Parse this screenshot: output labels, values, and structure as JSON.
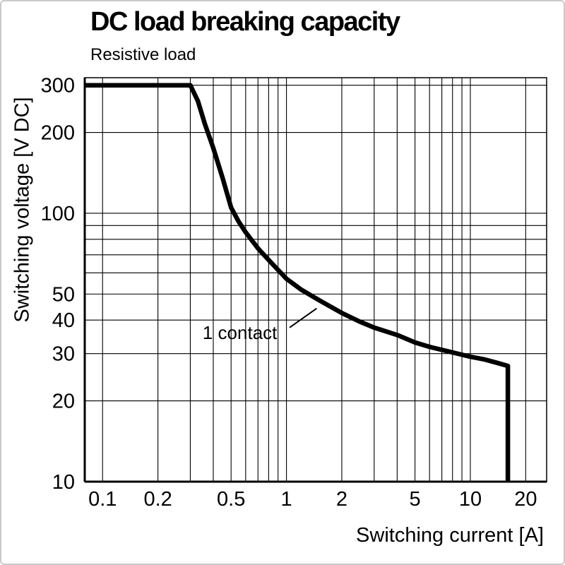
{
  "chart_data": {
    "type": "line",
    "title": "DC load breaking capacity",
    "subtitle": "Resistive load",
    "xlabel": "Switching current [A]",
    "ylabel": "Switching voltage [V DC]",
    "x_scale": "log",
    "y_scale": "log",
    "xlim": [
      0.08,
      26
    ],
    "ylim": [
      10,
      320
    ],
    "grid": true,
    "x_ticks": [
      {
        "value": 0.1,
        "label": "0.1"
      },
      {
        "value": 0.2,
        "label": "0.2"
      },
      {
        "value": 0.5,
        "label": "0.5"
      },
      {
        "value": 1,
        "label": "1"
      },
      {
        "value": 2,
        "label": "2"
      },
      {
        "value": 5,
        "label": "5"
      },
      {
        "value": 10,
        "label": "10"
      },
      {
        "value": 20,
        "label": "20"
      }
    ],
    "y_ticks": [
      {
        "value": 10,
        "label": "10"
      },
      {
        "value": 20,
        "label": "20"
      },
      {
        "value": 30,
        "label": "30"
      },
      {
        "value": 40,
        "label": "40"
      },
      {
        "value": 50,
        "label": "50"
      },
      {
        "value": 100,
        "label": "100"
      },
      {
        "value": 200,
        "label": "200"
      },
      {
        "value": 300,
        "label": "300"
      }
    ],
    "x_gridlines": [
      0.1,
      0.2,
      0.3,
      0.4,
      0.5,
      0.6,
      0.7,
      0.8,
      0.9,
      1,
      2,
      3,
      4,
      5,
      6,
      7,
      8,
      9,
      10,
      20
    ],
    "y_gridlines": [
      10,
      20,
      30,
      40,
      50,
      60,
      70,
      80,
      90,
      100,
      200,
      300
    ],
    "series": [
      {
        "name": "1 contact",
        "color": "#000000",
        "points": [
          [
            0.08,
            300
          ],
          [
            0.3,
            300
          ],
          [
            0.33,
            262
          ],
          [
            0.36,
            215
          ],
          [
            0.4,
            175
          ],
          [
            0.45,
            135
          ],
          [
            0.5,
            105
          ],
          [
            0.55,
            93
          ],
          [
            0.6,
            85
          ],
          [
            0.7,
            74
          ],
          [
            0.8,
            67
          ],
          [
            0.9,
            61.5
          ],
          [
            1,
            57
          ],
          [
            1.2,
            52
          ],
          [
            1.5,
            47.5
          ],
          [
            2,
            42.5
          ],
          [
            2.5,
            39.5
          ],
          [
            3,
            37.5
          ],
          [
            4,
            35.2
          ],
          [
            5,
            33
          ],
          [
            6,
            31.8
          ],
          [
            8,
            30.3
          ],
          [
            10,
            29.2
          ],
          [
            12,
            28.5
          ],
          [
            14,
            27.7
          ],
          [
            16,
            27
          ],
          [
            16,
            10
          ]
        ]
      }
    ],
    "annotation": {
      "text": "1 contact",
      "text_xy": [
        0.35,
        34
      ],
      "leader_from": [
        1.04,
        37.5
      ],
      "leader_to": [
        1.46,
        44.2
      ]
    },
    "colors": {
      "line": "#000000",
      "grid": "#000000",
      "frame_border": "#c9c9c9",
      "text": "#000000"
    }
  }
}
